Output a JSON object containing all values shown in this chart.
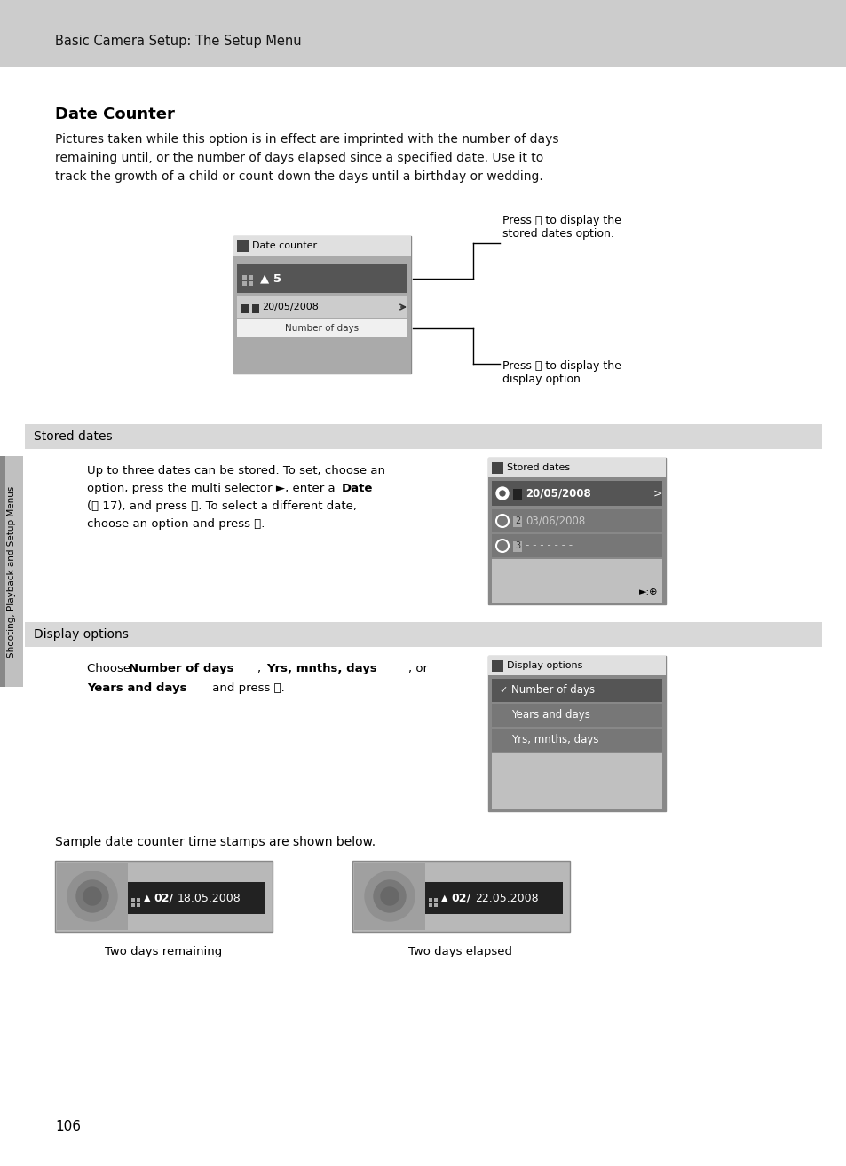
{
  "page_bg": "#ffffff",
  "header_bg": "#cccccc",
  "header_text": "Basic Camera Setup: The Setup Menu",
  "title": "Date Counter",
  "body_text1": "Pictures taken while this option is in effect are imprinted with the number of days\nremaining until, or the number of days elapsed since a specified date. Use it to\ntrack the growth of a child or count down the days until a birthday or wedding.",
  "section1_header": "Stored dates",
  "section1_header_bg": "#d8d8d8",
  "section2_header": "Display options",
  "section2_header_bg": "#d8d8d8",
  "footer_text": "Sample date counter time stamps are shown below.",
  "page_number": "106",
  "side_label": "Shooting, Playback and Setup Menus",
  "side_tab_bg": "#c0c0c0",
  "side_tab_accent": "#888888",
  "ok_symbol": "ⓞ"
}
